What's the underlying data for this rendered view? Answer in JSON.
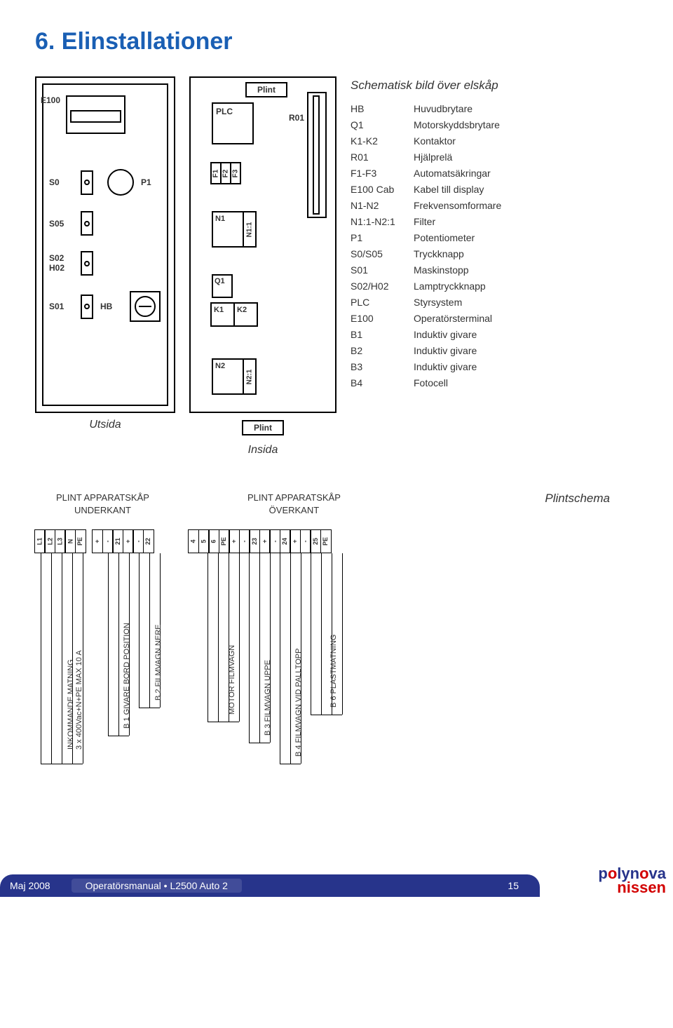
{
  "title_color": "#1a5fb4",
  "title": "6.  Elinstallationer",
  "cabinet_outside": {
    "caption": "Utsida",
    "E100": "E100",
    "P1": "P1",
    "switches": [
      "S0",
      "S05",
      "S02\nH02",
      "S01"
    ],
    "HB": "HB"
  },
  "cabinet_inside": {
    "caption": "Insida",
    "plint": "Plint",
    "PLC": "PLC",
    "R01": "R01",
    "fuses": [
      "F1",
      "F2",
      "F3"
    ],
    "N1": "N1",
    "N1_1": "N1:1",
    "Q1": "Q1",
    "K1": "K1",
    "K2": "K2",
    "N2": "N2",
    "N2_1": "N2:1"
  },
  "legend": {
    "title": "Schematisk bild över elskåp",
    "rows": [
      {
        "k": "HB",
        "v": "Huvudbrytare"
      },
      {
        "k": "Q1",
        "v": "Motorskyddsbrytare"
      },
      {
        "k": "K1-K2",
        "v": "Kontaktor"
      },
      {
        "k": "R01",
        "v": "Hjälprelä"
      },
      {
        "k": "F1-F3",
        "v": "Automatsäkringar"
      },
      {
        "k": "E100 Cab",
        "v": "Kabel till display"
      },
      {
        "k": "N1-N2",
        "v": "Frekvensomformare"
      },
      {
        "k": "N1:1-N2:1",
        "v": "Filter"
      },
      {
        "k": "P1",
        "v": "Potentiometer"
      },
      {
        "k": "S0/S05",
        "v": "Tryckknapp"
      },
      {
        "k": "S01",
        "v": "Maskinstopp"
      },
      {
        "k": "S02/H02",
        "v": "Lamptryckknapp"
      },
      {
        "k": "PLC",
        "v": "Styrsystem"
      },
      {
        "k": "E100",
        "v": "Operatörsterminal"
      },
      {
        "k": "B1",
        "v": "Induktiv givare"
      },
      {
        "k": "B2",
        "v": "Induktiv givare"
      },
      {
        "k": "B3",
        "v": "Induktiv givare"
      },
      {
        "k": "B4",
        "v": "Fotocell"
      }
    ]
  },
  "plintschema": {
    "left_header": "PLINT APPARATSKÅP\nUNDERKANT",
    "right_header": "PLINT APPARATSKÅP\nÖVERKANT",
    "section_title": "Plintschema",
    "left_terminals": [
      "L1",
      "L2",
      "L3",
      "N",
      "PE",
      "",
      "+",
      "-",
      "21",
      "+",
      "-",
      "22"
    ],
    "right_terminals": [
      "4",
      "5",
      "6",
      "PE",
      "+",
      "-",
      "23",
      "+",
      "-",
      "24",
      "+",
      "-",
      "25",
      "PE"
    ],
    "wire_labels": [
      "INKOMMANDE MATNING\n3 x 400Vac+N+PE MAX 10 A",
      "B 1 GIVARE BORD POSITION",
      "B 2 FILMVAGN NERE",
      "MOTOR FILMVAGN",
      "B 3 FILMVAGN UPPE",
      "B 4 FILMVAGN VID PALLTOPP",
      "B 6 PLASTMATNING"
    ]
  },
  "footer": {
    "date": "Maj 2008",
    "manual": "Operatörsmanual • L2500 Auto 2",
    "page": "15",
    "logo_top": "polynova",
    "logo_bot": "nissen",
    "bg": "#27348b"
  }
}
